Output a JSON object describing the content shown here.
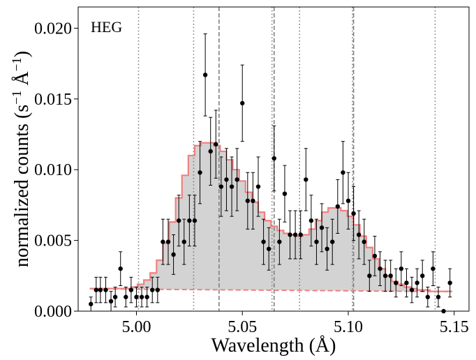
{
  "chart_data": {
    "type": "scatter",
    "panel_label": "HEG",
    "xlabel": "Wavelength (Å)",
    "ylabel_main": "normalized counts (s",
    "ylabel_exp1": "−1",
    "ylabel_unit": " Å",
    "ylabel_exp2": "−1",
    "ylabel_close": ")",
    "xlim": [
      4.9725,
      5.157
    ],
    "ylim": [
      0.0,
      0.0215
    ],
    "x_ticks": [
      5.0,
      5.05,
      5.1,
      5.15
    ],
    "x_tick_labels": [
      "5.00",
      "5.05",
      "5.10",
      "5.15"
    ],
    "y_ticks": [
      0.0,
      0.005,
      0.01,
      0.015,
      0.02
    ],
    "y_tick_labels": [
      "0.000",
      "0.005",
      "0.010",
      "0.015",
      "0.020"
    ],
    "colors": {
      "model": "#f08080",
      "fill": "#d3d3d3",
      "points": "#000000",
      "lines": "#808080"
    },
    "vlines_dotted": [
      5.001,
      5.027,
      5.064,
      5.077,
      5.102,
      5.141
    ],
    "vlines_dashed": [
      5.039,
      5.065,
      5.1025
    ],
    "continuum": {
      "x": [
        4.978,
        5.149
      ],
      "y": [
        0.00158,
        0.00138
      ]
    },
    "model": {
      "x": [
        4.978,
        4.981,
        4.984,
        4.987,
        4.99,
        4.993,
        4.996,
        4.999,
        5.002,
        5.005,
        5.008,
        5.011,
        5.014,
        5.017,
        5.02,
        5.023,
        5.026,
        5.029,
        5.032,
        5.035,
        5.038,
        5.041,
        5.044,
        5.047,
        5.05,
        5.053,
        5.056,
        5.059,
        5.062,
        5.065,
        5.068,
        5.071,
        5.074,
        5.077,
        5.08,
        5.083,
        5.086,
        5.089,
        5.092,
        5.095,
        5.098,
        5.101,
        5.104,
        5.107,
        5.11,
        5.113,
        5.116,
        5.119,
        5.122,
        5.125,
        5.128,
        5.131,
        5.134,
        5.137,
        5.14,
        5.143,
        5.146,
        5.149
      ],
      "y": [
        0.0016,
        0.0016,
        0.0016,
        0.0016,
        0.0016,
        0.0016,
        0.0016,
        0.0017,
        0.0019,
        0.0022,
        0.0027,
        0.0036,
        0.0048,
        0.0063,
        0.008,
        0.0096,
        0.011,
        0.0117,
        0.0119,
        0.0119,
        0.0117,
        0.0113,
        0.0107,
        0.01,
        0.0092,
        0.0084,
        0.0077,
        0.007,
        0.0064,
        0.006,
        0.0057,
        0.0055,
        0.0054,
        0.0053,
        0.0054,
        0.0058,
        0.0064,
        0.007,
        0.0073,
        0.0073,
        0.0071,
        0.0067,
        0.0061,
        0.0053,
        0.0045,
        0.0037,
        0.003,
        0.0025,
        0.0021,
        0.0019,
        0.0017,
        0.0016,
        0.0015,
        0.0015,
        0.0014,
        0.0014,
        0.0014,
        0.0014
      ]
    },
    "points": {
      "x": [
        4.9785,
        4.981,
        4.983,
        4.9855,
        4.988,
        4.99,
        4.9925,
        4.995,
        4.9975,
        5.0,
        5.0025,
        5.005,
        5.0075,
        5.01,
        5.0125,
        5.015,
        5.0175,
        5.02,
        5.0225,
        5.025,
        5.0275,
        5.03,
        5.0325,
        5.035,
        5.0375,
        5.04,
        5.0425,
        5.045,
        5.0475,
        5.05,
        5.0525,
        5.055,
        5.0575,
        5.06,
        5.0625,
        5.065,
        5.0675,
        5.07,
        5.0725,
        5.075,
        5.0775,
        5.08,
        5.0825,
        5.085,
        5.0875,
        5.09,
        5.0925,
        5.095,
        5.0975,
        5.1,
        5.1025,
        5.105,
        5.1075,
        5.11,
        5.1125,
        5.115,
        5.1175,
        5.12,
        5.1225,
        5.125,
        5.1275,
        5.13,
        5.1325,
        5.135,
        5.1375,
        5.14,
        5.1425,
        5.145,
        5.148
      ],
      "y": [
        0.0005,
        0.0015,
        0.0015,
        0.0015,
        0.0007,
        0.001,
        0.003,
        0.001,
        0.0015,
        0.001,
        0.001,
        0.001,
        0.0015,
        0.0015,
        0.0049,
        0.0049,
        0.004,
        0.0064,
        0.0049,
        0.0064,
        0.0064,
        0.0098,
        0.0167,
        0.0113,
        0.0118,
        0.0088,
        0.0093,
        0.0088,
        0.0093,
        0.0147,
        0.0078,
        0.0078,
        0.0088,
        0.0049,
        0.0044,
        0.0108,
        0.0049,
        0.0083,
        0.0054,
        0.0054,
        0.0054,
        0.0093,
        0.0064,
        0.0049,
        0.0059,
        0.0044,
        0.0049,
        0.0074,
        0.0098,
        0.0078,
        0.0069,
        0.0054,
        0.0049,
        0.0025,
        0.0039,
        0.003,
        0.0025,
        0.0025,
        0.002,
        0.003,
        0.002,
        0.0015,
        0.002,
        0.0025,
        0.001,
        0.003,
        0.001,
        0.0,
        0.002
      ],
      "err": [
        0.0005,
        0.0009,
        0.0009,
        0.0009,
        0.0007,
        0.0007,
        0.0012,
        0.0007,
        0.0009,
        0.0007,
        0.0007,
        0.0007,
        0.0009,
        0.0009,
        0.0016,
        0.0016,
        0.0014,
        0.0018,
        0.0016,
        0.0018,
        0.0018,
        0.0022,
        0.0029,
        0.0024,
        0.0024,
        0.0021,
        0.0022,
        0.0021,
        0.0022,
        0.0027,
        0.002,
        0.002,
        0.0021,
        0.0016,
        0.0015,
        0.0023,
        0.0016,
        0.002,
        0.0017,
        0.0017,
        0.0017,
        0.0022,
        0.0018,
        0.0016,
        0.0017,
        0.0015,
        0.0016,
        0.0019,
        0.0022,
        0.002,
        0.0019,
        0.0017,
        0.0016,
        0.0011,
        0.0014,
        0.0012,
        0.0011,
        0.0011,
        0.001,
        0.0012,
        0.001,
        0.0009,
        0.001,
        0.0011,
        0.0007,
        0.0012,
        0.0007,
        0.0,
        0.001
      ]
    }
  }
}
